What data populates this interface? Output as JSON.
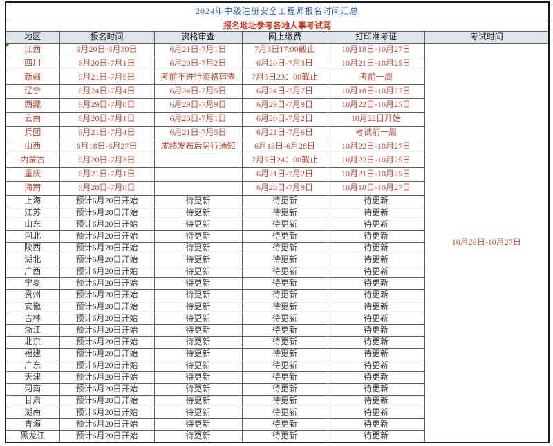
{
  "meta": {
    "title": "2024年中级注册安全工程师报名时间汇总",
    "subtitle": "报名地址参考各地人事考试网"
  },
  "table": {
    "columns": [
      "地区",
      "报名时间",
      "资格审查",
      "网上缴费",
      "打印准考证",
      "考试时间"
    ],
    "exam_time": "10月26日-10月27日",
    "rows": [
      {
        "region": "江西",
        "signup": "6月20日-6月30日",
        "review": "6月21日-7月1日",
        "payment": "7月3日17:00截止",
        "ticket": "10月18日-10月27日",
        "highlight": true,
        "flag": true
      },
      {
        "region": "四川",
        "signup": "6月20日-7月1日",
        "review": "6月20日-7月2日",
        "payment": "6月20日-7月3日",
        "ticket": "10月21日-10月25日",
        "highlight": true
      },
      {
        "region": "新疆",
        "signup": "6月21日-7月5日",
        "review": "考前不进行资格审查",
        "payment": "7月5日23：00截止",
        "ticket": "考前一周",
        "highlight": true
      },
      {
        "region": "辽宁",
        "signup": "6月24日-7月4日",
        "review": "6月24日-7月5日",
        "payment": "6月24日-7月7日",
        "ticket": "10月18日-10月27日",
        "highlight": true
      },
      {
        "region": "西藏",
        "signup": "6月29日-7月8日",
        "review": "6月29日-7月9日",
        "payment": "6月29日-7月9日",
        "ticket": "10月22日-10月25日",
        "highlight": true
      },
      {
        "region": "云南",
        "signup": "6月20日-7月1日",
        "review": "6月20日-7月1日",
        "payment": "6月20日-7月2日",
        "ticket": "10月22日开始",
        "highlight": true
      },
      {
        "region": "兵团",
        "signup": "6月21日-7月4日",
        "review": "6月21日-7月5日",
        "payment": "6月21日-7月6日",
        "ticket": "考试前一周",
        "highlight": true
      },
      {
        "region": "山西",
        "signup": "6月18日-6月27日",
        "review": "成绩发布后另行通知",
        "payment": "6月18日-6月28日",
        "ticket": "10月22日-10月27日",
        "highlight": true
      },
      {
        "region": "内蒙古",
        "signup": "6月20日-7月3日",
        "review": "",
        "payment": "7月5日24：00截止",
        "ticket": "10月22日-10月25日",
        "highlight": true
      },
      {
        "region": "重庆",
        "signup": "6月21日-7月1日",
        "review": "",
        "payment": "6月21日-7月2日",
        "ticket": "10月21日-10月25日",
        "highlight": true
      },
      {
        "region": "海南",
        "signup": "6月28日-7月8日",
        "review": "",
        "payment": "6月28日-7月9日",
        "ticket": "10月18日-10月27日",
        "highlight": true
      },
      {
        "region": "上海",
        "signup": "预计6月20日开始",
        "review": "待更新",
        "payment": "待更新",
        "ticket": "待更新",
        "highlight": false
      },
      {
        "region": "江苏",
        "signup": "预计6月20日开始",
        "review": "待更新",
        "payment": "待更新",
        "ticket": "待更新",
        "highlight": false
      },
      {
        "region": "山东",
        "signup": "预计6月20日开始",
        "review": "待更新",
        "payment": "待更新",
        "ticket": "待更新",
        "highlight": false
      },
      {
        "region": "河北",
        "signup": "预计6月20日开始",
        "review": "待更新",
        "payment": "待更新",
        "ticket": "待更新",
        "highlight": false
      },
      {
        "region": "陕西",
        "signup": "预计6月20日开始",
        "review": "待更新",
        "payment": "待更新",
        "ticket": "待更新",
        "highlight": false
      },
      {
        "region": "湖北",
        "signup": "预计6月20日开始",
        "review": "待更新",
        "payment": "待更新",
        "ticket": "待更新",
        "highlight": false
      },
      {
        "region": "广西",
        "signup": "预计6月20日开始",
        "review": "待更新",
        "payment": "待更新",
        "ticket": "待更新",
        "highlight": false
      },
      {
        "region": "宁夏",
        "signup": "预计6月20日开始",
        "review": "待更新",
        "payment": "待更新",
        "ticket": "待更新",
        "highlight": false
      },
      {
        "region": "贵州",
        "signup": "预计6月20日开始",
        "review": "待更新",
        "payment": "待更新",
        "ticket": "待更新",
        "highlight": false
      },
      {
        "region": "安徽",
        "signup": "预计6月20日开始",
        "review": "待更新",
        "payment": "待更新",
        "ticket": "待更新",
        "highlight": false
      },
      {
        "region": "吉林",
        "signup": "预计6月20日开始",
        "review": "待更新",
        "payment": "待更新",
        "ticket": "待更新",
        "highlight": false
      },
      {
        "region": "浙江",
        "signup": "预计6月20日开始",
        "review": "待更新",
        "payment": "待更新",
        "ticket": "待更新",
        "highlight": false
      },
      {
        "region": "北京",
        "signup": "预计6月20日开始",
        "review": "待更新",
        "payment": "待更新",
        "ticket": "待更新",
        "highlight": false
      },
      {
        "region": "福建",
        "signup": "预计6月20日开始",
        "review": "待更新",
        "payment": "待更新",
        "ticket": "待更新",
        "highlight": false
      },
      {
        "region": "广东",
        "signup": "预计6月20日开始",
        "review": "待更新",
        "payment": "待更新",
        "ticket": "待更新",
        "highlight": false
      },
      {
        "region": "天津",
        "signup": "预计6月20日开始",
        "review": "待更新",
        "payment": "待更新",
        "ticket": "待更新",
        "highlight": false
      },
      {
        "region": "河南",
        "signup": "预计6月20日开始",
        "review": "待更新",
        "payment": "待更新",
        "ticket": "待更新",
        "highlight": false
      },
      {
        "region": "甘肃",
        "signup": "预计6月20日开始",
        "review": "待更新",
        "payment": "待更新",
        "ticket": "待更新",
        "highlight": false
      },
      {
        "region": "湖南",
        "signup": "预计6月20日开始",
        "review": "待更新",
        "payment": "待更新",
        "ticket": "待更新",
        "highlight": false
      },
      {
        "region": "青海",
        "signup": "预计6月20日开始",
        "review": "待更新",
        "payment": "待更新",
        "ticket": "待更新",
        "highlight": false
      },
      {
        "region": "黑龙江",
        "signup": "预计6月20日开始",
        "review": "待更新",
        "payment": "待更新",
        "ticket": "待更新",
        "highlight": false
      }
    ]
  },
  "colors": {
    "title_blue": "#2c5fb4",
    "subtitle_red": "#c5391d",
    "highlight_red": "#bf4937",
    "muted_text": "#3d3d3d",
    "header_bg": "#dfe3ec",
    "grid_line": "#5f5f5f",
    "flag_green": "#2e7d32"
  }
}
